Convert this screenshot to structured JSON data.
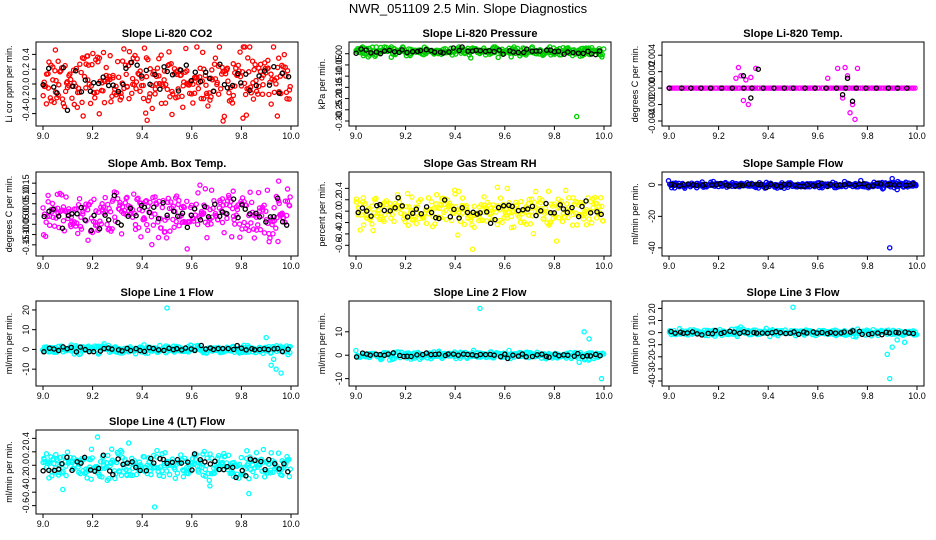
{
  "title": "NWR_051109  2.5 Min. Slope Diagnostics",
  "chart_data": [
    {
      "type": "scatter",
      "title": "Slope Li-820 CO2",
      "ylabel": "Li cor ppm per min.",
      "xlim": [
        9.0,
        10.0
      ],
      "ylim": [
        -0.5,
        0.5
      ],
      "yticks": [
        -0.4,
        -0.2,
        0.0,
        0.2,
        0.4
      ],
      "xticks": [
        9.0,
        9.2,
        9.4,
        9.6,
        9.8,
        10.0
      ],
      "color": "#ff0000",
      "spread": 0.2,
      "center": 0.05,
      "n": 320,
      "outliers": [
        [
          9.05,
          0.46
        ],
        [
          9.18,
          0.38
        ],
        [
          9.42,
          -0.49
        ],
        [
          9.82,
          -0.42
        ]
      ]
    },
    {
      "type": "scatter",
      "title": "Slope Li-820 Pressure",
      "ylabel": "kPa per min.",
      "xlim": [
        9.0,
        10.0
      ],
      "ylim": [
        -0.3,
        0.03
      ],
      "yticks": [
        -0.3,
        -0.25,
        -0.2,
        -0.15,
        -0.1,
        -0.05,
        0.0
      ],
      "xticks": [
        9.0,
        9.2,
        9.4,
        9.6,
        9.8,
        10.0
      ],
      "color": "#00cc00",
      "spread": 0.01,
      "center": 0.01,
      "n": 320,
      "outliers": [
        [
          9.89,
          -0.28
        ]
      ]
    },
    {
      "type": "scatter",
      "title": "Slope Li-820 Temp.",
      "ylabel": "degrees C per min.",
      "xlim": [
        9.0,
        10.0
      ],
      "ylim": [
        -0.004,
        0.005
      ],
      "yticks": [
        -0.004,
        -0.002,
        0.0,
        0.002,
        0.004
      ],
      "xticks": [
        9.0,
        9.2,
        9.4,
        9.6,
        9.8,
        10.0
      ],
      "color": "#ff00ff",
      "spread": 0.0,
      "center": 0.0,
      "n": 140,
      "outliers": [
        [
          9.28,
          0.0025
        ],
        [
          9.29,
          0.0015
        ],
        [
          9.3,
          -0.0015
        ],
        [
          9.31,
          0.001
        ],
        [
          9.32,
          -0.002
        ],
        [
          9.27,
          0.0012
        ],
        [
          9.33,
          0.0013
        ],
        [
          9.35,
          0.0024
        ],
        [
          9.71,
          0.0025
        ],
        [
          9.72,
          0.0015
        ],
        [
          9.73,
          -0.003
        ],
        [
          9.74,
          -0.002
        ],
        [
          9.75,
          -0.0038
        ],
        [
          9.68,
          0.0024
        ],
        [
          9.7,
          -0.0012
        ],
        [
          9.76,
          0.0024
        ],
        [
          9.64,
          0.0012
        ]
      ]
    },
    {
      "type": "scatter",
      "title": "Slope Amb. Box Temp.",
      "ylabel": "degrees C per min.",
      "xlim": [
        9.0,
        10.0
      ],
      "ylim": [
        -0.18,
        0.18
      ],
      "yticks": [
        -0.15,
        -0.1,
        -0.05,
        0.0,
        0.05,
        0.1,
        0.15
      ],
      "xticks": [
        9.0,
        9.2,
        9.4,
        9.6,
        9.8,
        10.0
      ],
      "color": "#ff00ff",
      "spread": 0.06,
      "center": 0.0,
      "n": 320,
      "outliers": [
        [
          9.95,
          0.16
        ]
      ]
    },
    {
      "type": "scatter",
      "title": "Slope Gas Stream RH",
      "ylabel": "percent per min.",
      "xlim": [
        9.0,
        10.0
      ],
      "ylim": [
        -0.7,
        0.6
      ],
      "yticks": [
        -0.6,
        -0.4,
        -0.2,
        0.0,
        0.2,
        0.4
      ],
      "xticks": [
        9.0,
        9.2,
        9.4,
        9.6,
        9.8,
        10.0
      ],
      "color": "#ffff00",
      "spread": 0.14,
      "center": 0.0,
      "n": 320,
      "outliers": [
        [
          9.47,
          -0.67
        ],
        [
          9.57,
          0.42
        ],
        [
          9.61,
          0.4
        ]
      ]
    },
    {
      "type": "scatter",
      "title": "Slope Sample Flow",
      "ylabel": "ml/min per min.",
      "xlim": [
        9.0,
        10.0
      ],
      "ylim": [
        -42,
        5
      ],
      "yticks": [
        -40,
        -20,
        0
      ],
      "xticks": [
        9.0,
        9.2,
        9.4,
        9.6,
        9.8,
        10.0
      ],
      "color": "#0000ff",
      "spread": 0.8,
      "center": 0.0,
      "n": 320,
      "outliers": [
        [
          9.89,
          -40
        ],
        [
          9.9,
          4
        ],
        [
          9.92,
          -3
        ]
      ]
    },
    {
      "type": "scatter",
      "title": "Slope Line 1 Flow",
      "ylabel": "ml/min per min.",
      "xlim": [
        9.0,
        10.0
      ],
      "ylim": [
        -16,
        22
      ],
      "yticks": [
        -10,
        0,
        10,
        20
      ],
      "xticks": [
        9.0,
        9.2,
        9.4,
        9.6,
        9.8,
        10.0
      ],
      "color": "#00ffff",
      "spread": 1.0,
      "center": 0.0,
      "n": 320,
      "outliers": [
        [
          9.5,
          21
        ],
        [
          9.92,
          -8
        ],
        [
          9.94,
          -10
        ],
        [
          9.96,
          -12
        ],
        [
          9.9,
          6
        ],
        [
          9.93,
          -5
        ]
      ]
    },
    {
      "type": "scatter",
      "title": "Slope Line 2 Flow",
      "ylabel": "ml/min per min.",
      "xlim": [
        9.0,
        10.0
      ],
      "ylim": [
        -11,
        21
      ],
      "yticks": [
        -10,
        0,
        10
      ],
      "xticks": [
        9.0,
        9.2,
        9.4,
        9.6,
        9.8,
        10.0
      ],
      "color": "#00ffff",
      "spread": 0.8,
      "center": 0.0,
      "n": 320,
      "outliers": [
        [
          9.5,
          20
        ],
        [
          9.92,
          10
        ],
        [
          9.94,
          7
        ],
        [
          9.99,
          -10
        ],
        [
          9.9,
          -3
        ]
      ]
    },
    {
      "type": "scatter",
      "title": "Slope Line 3 Flow",
      "ylabel": "ml/min per min.",
      "xlim": [
        9.0,
        10.0
      ],
      "ylim": [
        -40,
        22
      ],
      "yticks": [
        -40,
        -30,
        -20,
        -10,
        0,
        10,
        20
      ],
      "xticks": [
        9.0,
        9.2,
        9.4,
        9.6,
        9.8,
        10.0
      ],
      "color": "#00ffff",
      "spread": 1.2,
      "center": 0.0,
      "n": 320,
      "outliers": [
        [
          9.5,
          21
        ],
        [
          9.89,
          -38
        ],
        [
          9.88,
          -18
        ],
        [
          9.9,
          -12
        ],
        [
          9.92,
          -6
        ],
        [
          9.95,
          -8
        ]
      ]
    },
    {
      "type": "scatter",
      "title": "Slope Line 4 (LT) Flow",
      "ylabel": "ml/min per min.",
      "xlim": [
        9.0,
        10.0
      ],
      "ylim": [
        -0.65,
        0.45
      ],
      "yticks": [
        -0.6,
        -0.4,
        -0.2,
        0.0,
        0.2,
        0.4
      ],
      "xticks": [
        9.0,
        9.2,
        9.4,
        9.6,
        9.8,
        10.0
      ],
      "color": "#00ffff",
      "spread": 0.1,
      "center": 0.0,
      "n": 320,
      "outliers": [
        [
          9.45,
          -0.62
        ],
        [
          9.22,
          0.42
        ],
        [
          9.83,
          -0.42
        ],
        [
          9.08,
          -0.36
        ]
      ]
    }
  ]
}
